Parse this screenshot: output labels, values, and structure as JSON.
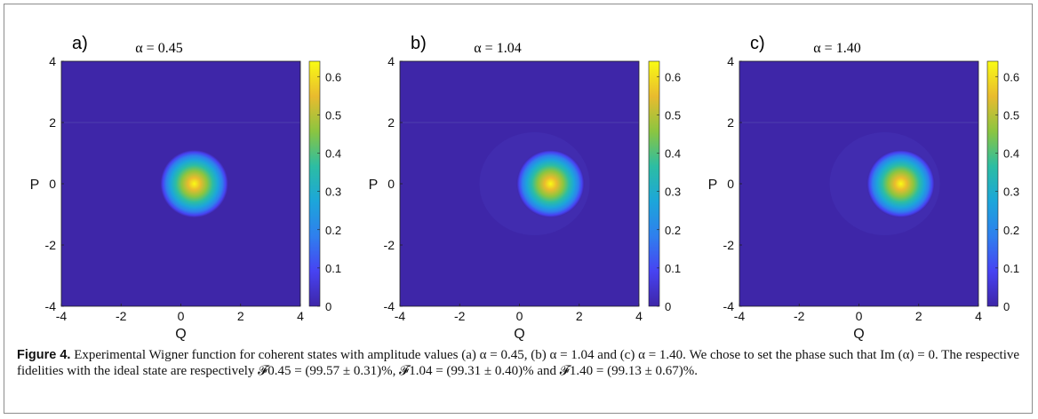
{
  "chart_data": [
    {
      "type": "heatmap",
      "panel": "a)",
      "title": "α = 0.45",
      "xlabel": "Q",
      "ylabel": "P",
      "xlim": [
        -4,
        4
      ],
      "ylim": [
        -4,
        4
      ],
      "xticks": [
        "-4",
        "-2",
        "0",
        "2",
        "4"
      ],
      "yticks": [
        "4",
        "2",
        "0",
        "-2",
        "-4"
      ],
      "peak": {
        "q": 0.45,
        "p": 0.0,
        "value": 0.64
      },
      "colorbar": {
        "ticks": [
          "0.6",
          "0.5",
          "0.4",
          "0.3",
          "0.2",
          "0.1",
          "0"
        ],
        "range": [
          0,
          0.64
        ]
      }
    },
    {
      "type": "heatmap",
      "panel": "b)",
      "title": "α = 1.04",
      "xlabel": "Q",
      "ylabel": "P",
      "xlim": [
        -4,
        4
      ],
      "ylim": [
        -4,
        4
      ],
      "xticks": [
        "-4",
        "-2",
        "0",
        "2",
        "4"
      ],
      "yticks": [
        "4",
        "2",
        "0",
        "-2",
        "-4"
      ],
      "peak": {
        "q": 1.04,
        "p": 0.0,
        "value": 0.64
      },
      "colorbar": {
        "ticks": [
          "0.6",
          "0.5",
          "0.4",
          "0.3",
          "0.2",
          "0.1",
          "0"
        ],
        "range": [
          0,
          0.64
        ]
      }
    },
    {
      "type": "heatmap",
      "panel": "c)",
      "title": "α = 1.40",
      "xlabel": "Q",
      "ylabel": "P",
      "xlim": [
        -4,
        4
      ],
      "ylim": [
        -4,
        4
      ],
      "xticks": [
        "-4",
        "-2",
        "0",
        "2",
        "4"
      ],
      "yticks": [
        "4",
        "2",
        "0",
        "-2",
        "-4"
      ],
      "peak": {
        "q": 1.4,
        "p": 0.0,
        "value": 0.64
      },
      "colorbar": {
        "ticks": [
          "0.6",
          "0.5",
          "0.4",
          "0.3",
          "0.2",
          "0.1",
          "0"
        ],
        "range": [
          0,
          0.64
        ]
      }
    }
  ],
  "caption": {
    "label": "Figure 4.",
    "text": "Experimental Wigner function for coherent states with amplitude values (a) α = 0.45, (b) α = 1.04 and (c) α = 1.40. We chose to set the phase such that Im (α) = 0. The respective fidelities with the ideal state are respectively 𝓕0.45 = (99.57 ± 0.31)%, 𝓕1.04 = (99.31 ± 0.40)% and 𝓕1.40 = (99.13 ± 0.67)%."
  },
  "colors": {
    "colormap": [
      "#3e26a8",
      "#4743f2",
      "#2f7fee",
      "#1ca6da",
      "#2cbda3",
      "#8bc540",
      "#e9bb2e",
      "#f9fb14"
    ]
  }
}
